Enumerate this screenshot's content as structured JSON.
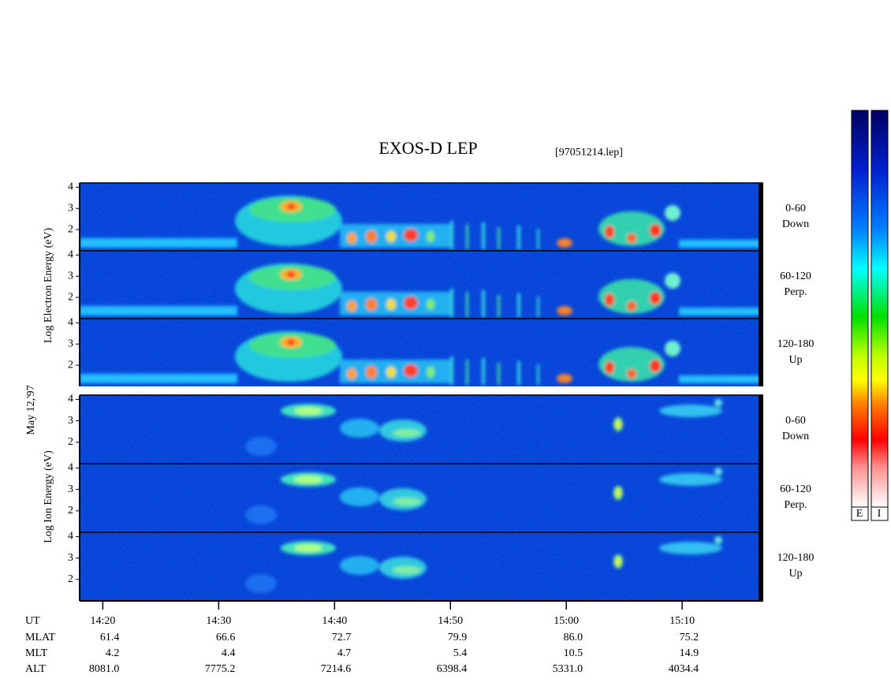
{
  "chart_data": {
    "type": "spectrogram",
    "title": "EXOS-D LEP",
    "subtitle": "[97051214.lep]",
    "date_label": "May 12,'97",
    "xlim": [
      "14:18",
      "15:17"
    ],
    "xticks": [
      "14:20",
      "14:30",
      "14:40",
      "14:50",
      "15:00",
      "15:10"
    ],
    "x_label": "UT",
    "ylim": [
      1,
      4.2
    ],
    "yticks": [
      2,
      3,
      4
    ],
    "groups": [
      {
        "ylabel": "Log Electron Energy (eV)",
        "panels": [
          {
            "range": "0-60",
            "direction": "Down"
          },
          {
            "range": "60-120",
            "direction": "Perp."
          },
          {
            "range": "120-180",
            "direction": "Up"
          }
        ]
      },
      {
        "ylabel": "Log Ion Energy (eV)",
        "panels": [
          {
            "range": "0-60",
            "direction": "Down"
          },
          {
            "range": "60-120",
            "direction": "Perp."
          },
          {
            "range": "120-180",
            "direction": "Up"
          }
        ]
      }
    ],
    "ephemeris": [
      {
        "label": "MLAT",
        "values": [
          "61.4",
          "66.6",
          "72.7",
          "79.9",
          "86.0",
          "75.2"
        ]
      },
      {
        "label": "MLT",
        "values": [
          "4.2",
          "4.4",
          "4.7",
          "5.4",
          "10.5",
          "14.9"
        ]
      },
      {
        "label": "ALT",
        "values": [
          "8081.0",
          "7775.2",
          "7214.6",
          "6398.4",
          "5331.0",
          "4034.4"
        ]
      }
    ],
    "colorbar_labels": [
      "E",
      "I"
    ]
  }
}
